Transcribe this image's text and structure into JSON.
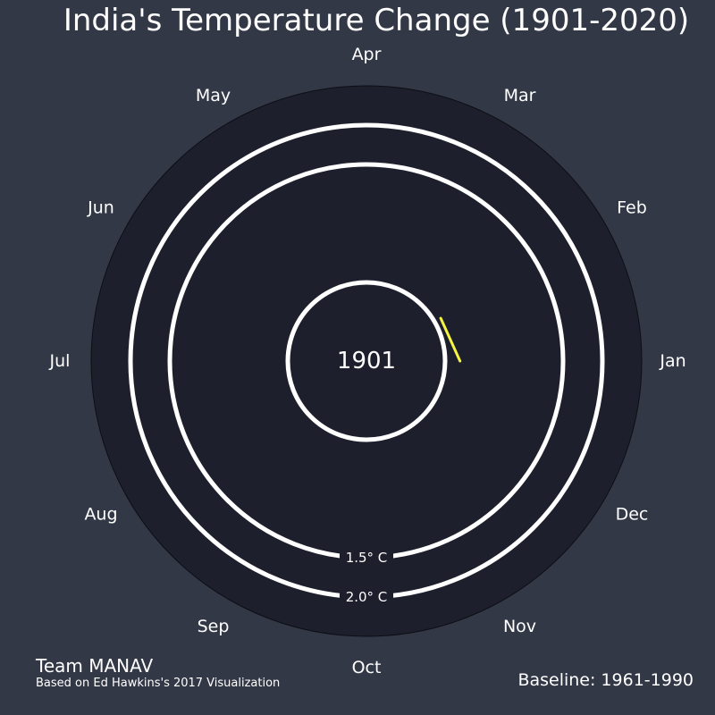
{
  "chart_data": {
    "type": "polar-line",
    "title": "India's Temperature Change (1901-2020)",
    "center_label": "1901",
    "months": [
      "Jan",
      "Feb",
      "Mar",
      "Apr",
      "May",
      "Jun",
      "Jul",
      "Aug",
      "Sep",
      "Oct",
      "Nov",
      "Dec"
    ],
    "radial_range": [
      -1.0,
      2.5
    ],
    "reference_circles": [
      {
        "value": 0.0,
        "label": ""
      },
      {
        "value": 1.5,
        "label": "1.5° C"
      },
      {
        "value": 2.0,
        "label": "2.0° C"
      }
    ],
    "series": [
      {
        "name": "1901",
        "color": "#f5f542",
        "points": [
          {
            "month": 1,
            "value": 0.19
          },
          {
            "month": 2,
            "value": 0.09
          }
        ]
      }
    ]
  },
  "footer": {
    "team": "Team MANAV",
    "credit": "Based on Ed Hawkins's 2017 Visualization",
    "baseline": "Baseline: 1961-1990"
  },
  "colors": {
    "background": "#333847",
    "plot_background": "#1d1f2c",
    "circle": "#ffffff",
    "text": "#ffffff"
  }
}
